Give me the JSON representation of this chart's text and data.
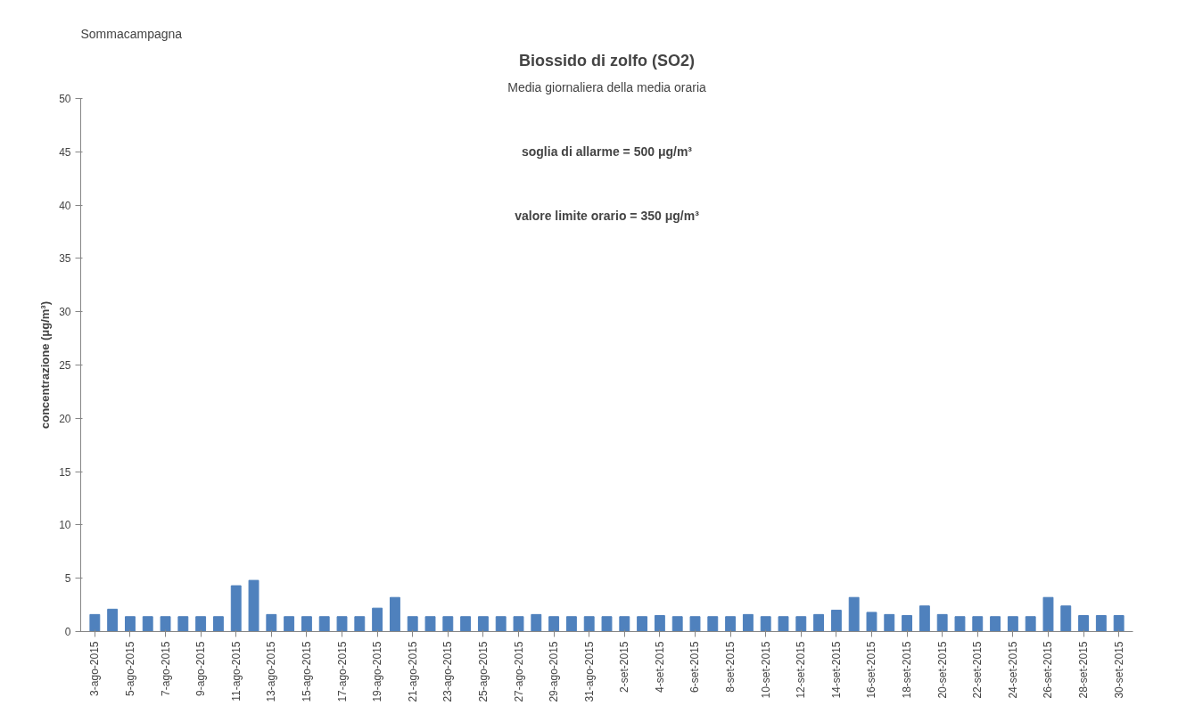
{
  "chart_data": {
    "type": "bar",
    "title": "Biossido di zolfo (SO2)",
    "subtitle": "Media giornaliera della media oraria",
    "ylabel": "concentrazione (μg/m³)",
    "annotations": [
      "Sommacampagna",
      "soglia di allarme = 500 μg/m³",
      "valore limite orario = 350 μg/m³"
    ],
    "categories": [
      "3-ago-2015",
      null,
      "5-ago-2015",
      null,
      "7-ago-2015",
      null,
      "9-ago-2015",
      null,
      "11-ago-2015",
      null,
      "13-ago-2015",
      null,
      "15-ago-2015",
      null,
      "17-ago-2015",
      null,
      "19-ago-2015",
      null,
      "21-ago-2015",
      null,
      "23-ago-2015",
      null,
      "25-ago-2015",
      null,
      "27-ago-2015",
      null,
      "29-ago-2015",
      null,
      "31-ago-2015",
      null,
      "2-set-2015",
      null,
      "4-set-2015",
      null,
      "6-set-2015",
      null,
      "8-set-2015",
      null,
      "10-set-2015",
      null,
      "12-set-2015",
      null,
      "14-set-2015",
      null,
      "16-set-2015",
      null,
      "18-set-2015",
      null,
      "20-set-2015",
      null,
      "22-set-2015",
      null,
      "24-set-2015",
      null,
      "26-set-2015",
      null,
      "28-set-2015",
      null,
      "30-set-2015"
    ],
    "values": [
      1.6,
      2.1,
      1.4,
      1.4,
      1.4,
      1.4,
      1.4,
      1.4,
      4.3,
      4.8,
      1.6,
      1.4,
      1.4,
      1.4,
      1.4,
      1.4,
      2.2,
      3.2,
      1.4,
      1.4,
      1.4,
      1.4,
      1.4,
      1.4,
      1.4,
      1.6,
      1.4,
      1.4,
      1.4,
      1.4,
      1.4,
      1.4,
      1.5,
      1.4,
      1.4,
      1.4,
      1.4,
      1.6,
      1.4,
      1.4,
      1.4,
      1.6,
      2.0,
      3.2,
      1.8,
      1.6,
      1.5,
      2.4,
      1.6,
      1.4,
      1.4,
      1.4,
      1.4,
      1.4,
      3.2,
      2.4,
      1.5,
      1.5,
      1.5
    ],
    "color": "#4f81bd",
    "ylim": [
      0,
      50
    ],
    "yticks": [
      0,
      5,
      10,
      15,
      20,
      25,
      30,
      35,
      40,
      45,
      50
    ],
    "grid": false
  }
}
